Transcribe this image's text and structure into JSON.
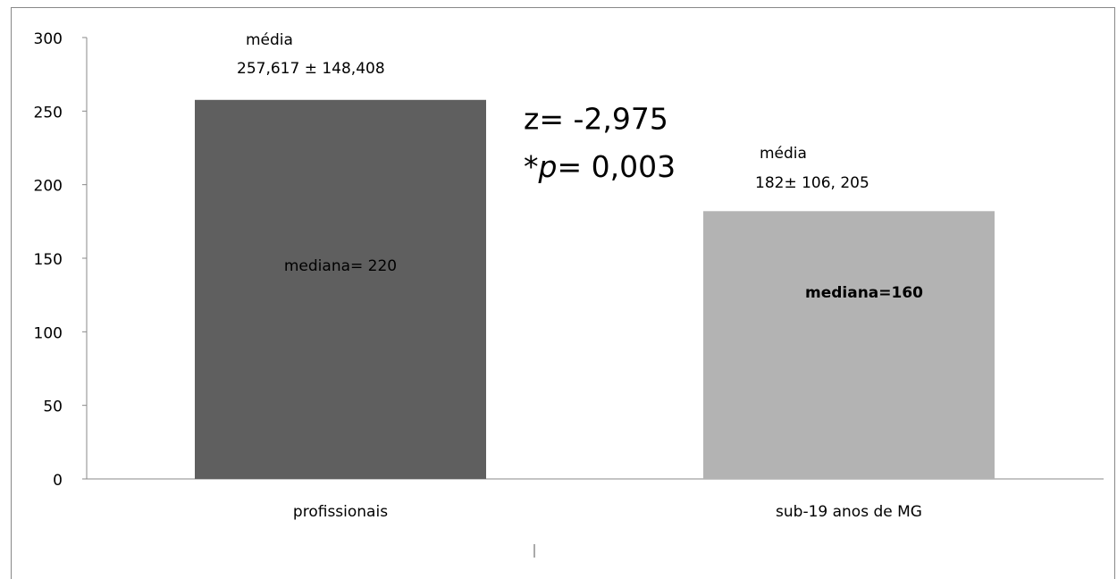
{
  "chart_data": {
    "type": "bar",
    "categories": [
      "profissionais",
      "sub-19 anos de MG"
    ],
    "values": [
      257.617,
      182
    ],
    "colors": [
      "#5f5f5f",
      "#b3b3b3"
    ],
    "ylim": [
      0,
      300
    ],
    "yticks": [
      0,
      50,
      100,
      150,
      200,
      250,
      300
    ],
    "grid": false,
    "annotations": {
      "bar_labels": [
        {
          "title": "média",
          "mean_sd": "257,617 ±  148,408",
          "median": "mediana= 220"
        },
        {
          "title": "média",
          "mean_sd": "182± 106, 205",
          "median": "mediana=160"
        }
      ],
      "z": "z= -2,975",
      "p": [
        "*",
        "p",
        "= 0,003"
      ]
    }
  }
}
